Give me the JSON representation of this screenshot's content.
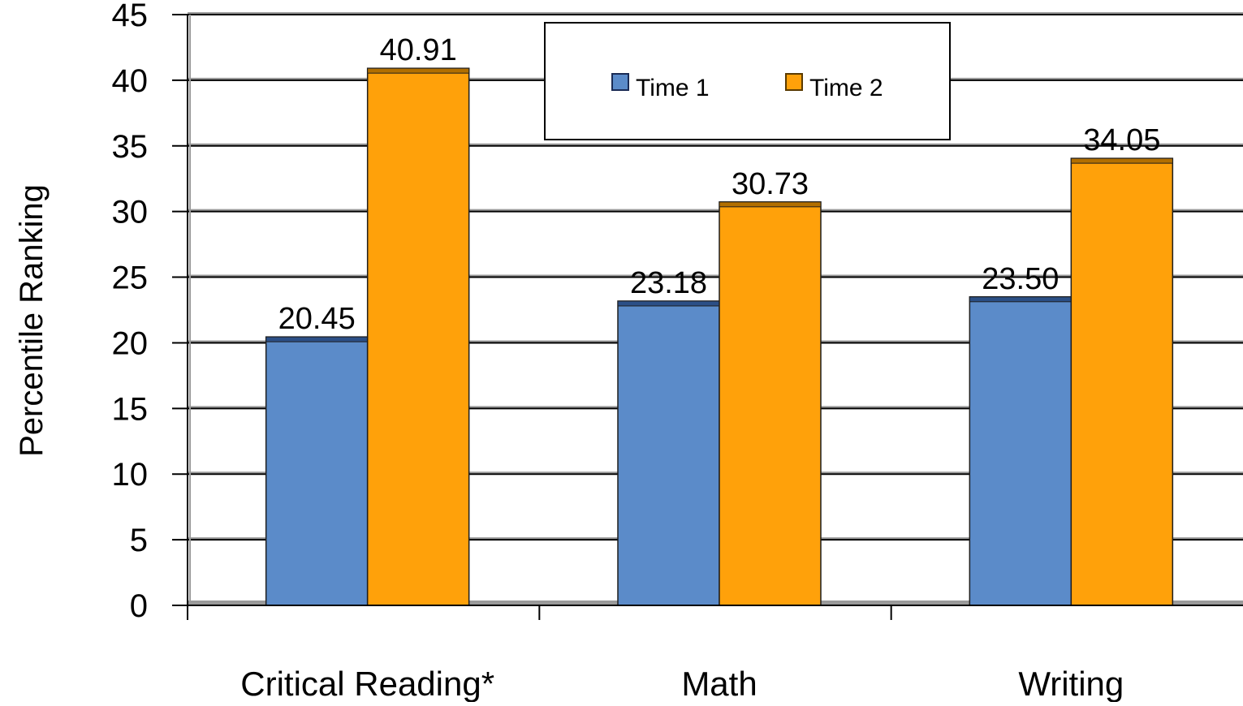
{
  "chart_data": {
    "type": "bar",
    "categories": [
      "Critical Reading*",
      "Math",
      "Writing"
    ],
    "series": [
      {
        "name": "Time 1",
        "values": [
          20.45,
          23.18,
          23.5
        ],
        "labels": [
          "20.45",
          "23.18",
          "23.50"
        ],
        "color": "#5b8bc9"
      },
      {
        "name": "Time 2",
        "values": [
          40.91,
          30.73,
          34.05
        ],
        "labels": [
          "40.91",
          "30.73",
          "34.05"
        ],
        "color": "#ffa10a"
      }
    ],
    "title": "",
    "xlabel": "",
    "ylabel": "Percentile Ranking",
    "ylim": [
      0,
      45
    ],
    "yticks": [
      0,
      5,
      10,
      15,
      20,
      25,
      30,
      35,
      40,
      45
    ],
    "grid": true,
    "legend_position": "top-center"
  }
}
